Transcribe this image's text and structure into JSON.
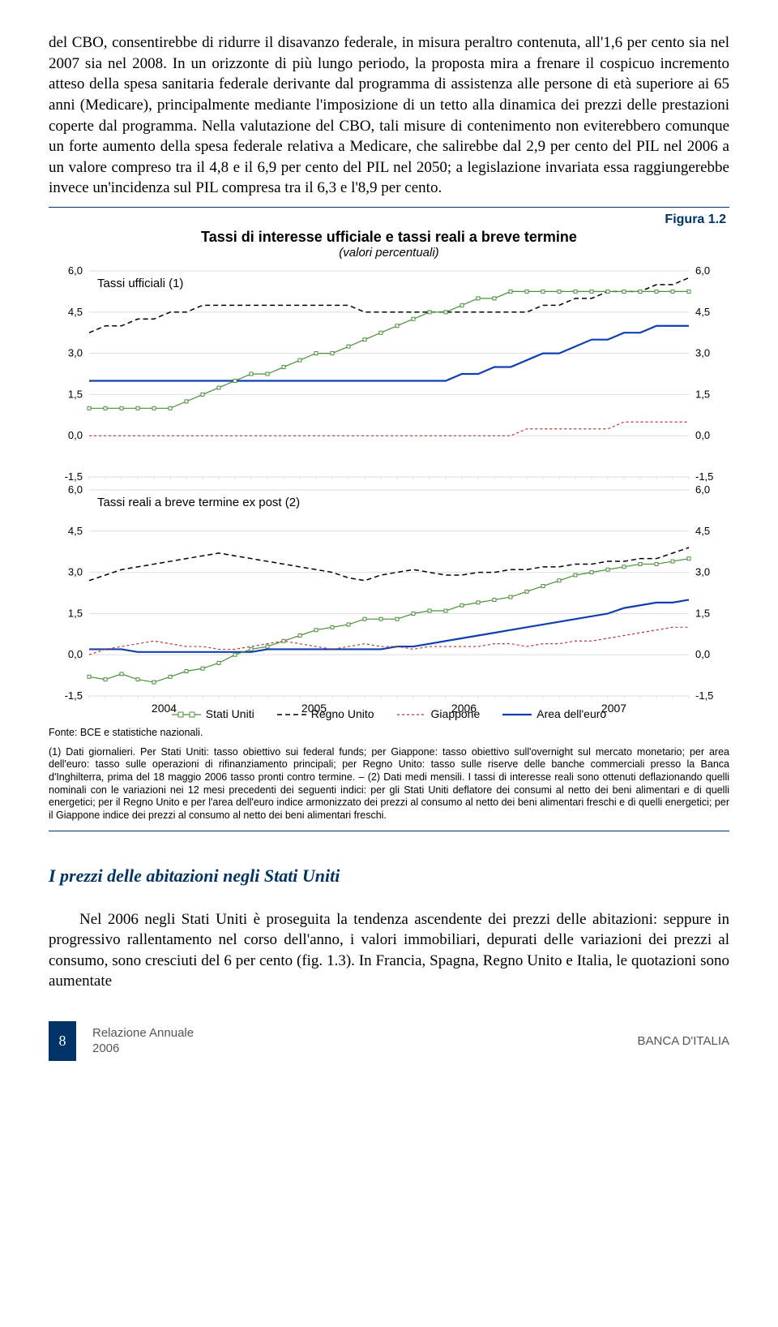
{
  "para1": "del CBO, consentirebbe di ridurre il disavanzo federale, in misura peraltro contenuta, all'1,6 per cento sia nel 2007 sia nel 2008. In un orizzonte di più lungo periodo, la proposta mira a frenare il cospicuo incremento atteso della spesa sanitaria federale derivante dal programma di assistenza alle persone di età superiore ai 65 anni (Medicare), principalmente mediante l'imposizione di un tetto alla dinamica dei prezzi delle prestazioni coperte dal programma. Nella valutazione del CBO, tali misure di contenimento non eviterebbero comunque un forte aumento della spesa federale relativa a Medicare, che salirebbe dal 2,9 per cento del PIL nel 2006 a un valore compreso tra il 4,8 e il 6,9 per cento del PIL nel 2050; a legislazione invariata essa raggiungerebbe invece un'incidenza sul PIL compresa tra il 6,3 e l'8,9 per cento.",
  "figure": {
    "label": "Figura 1.2",
    "title": "Tassi di interesse ufficiale e tassi reali a breve termine",
    "subtitle": "(valori percentuali)",
    "panel1_label": "Tassi ufficiali  (1)",
    "panel2_label": "Tassi reali a breve termine ex post (2)",
    "x_years": [
      "2004",
      "2005",
      "2006",
      "2007"
    ],
    "y_ticks": [
      "6,0",
      "4,5",
      "3,0",
      "1,5",
      "0,0",
      "-1,5"
    ],
    "ylim": [
      -1.5,
      6.0
    ],
    "colors": {
      "us": "#4a8f3a",
      "uk": "#000000",
      "jp": "#c03030",
      "euro": "#1040b0",
      "grid": "#dddddd",
      "plot_bg": "#ffffff"
    },
    "line_styles": {
      "us": {
        "dash": "none",
        "width": 1.2,
        "marker": "square"
      },
      "uk": {
        "dash": "6,4",
        "width": 1.5,
        "marker": "none"
      },
      "jp": {
        "dash": "3,3",
        "width": 1.2,
        "marker": "none"
      },
      "euro": {
        "dash": "none",
        "width": 2.2,
        "marker": "none"
      }
    },
    "panel1": {
      "us": [
        1.0,
        1.0,
        1.0,
        1.0,
        1.0,
        1.0,
        1.25,
        1.5,
        1.75,
        2.0,
        2.25,
        2.25,
        2.5,
        2.75,
        3.0,
        3.0,
        3.25,
        3.5,
        3.75,
        4.0,
        4.25,
        4.5,
        4.5,
        4.75,
        5.0,
        5.0,
        5.25,
        5.25,
        5.25,
        5.25,
        5.25,
        5.25,
        5.25,
        5.25,
        5.25,
        5.25,
        5.25,
        5.25
      ],
      "uk": [
        3.75,
        4.0,
        4.0,
        4.25,
        4.25,
        4.5,
        4.5,
        4.75,
        4.75,
        4.75,
        4.75,
        4.75,
        4.75,
        4.75,
        4.75,
        4.75,
        4.75,
        4.5,
        4.5,
        4.5,
        4.5,
        4.5,
        4.5,
        4.5,
        4.5,
        4.5,
        4.5,
        4.5,
        4.75,
        4.75,
        5.0,
        5.0,
        5.25,
        5.25,
        5.25,
        5.5,
        5.5,
        5.75
      ],
      "jp": [
        0.0,
        0.0,
        0.0,
        0.0,
        0.0,
        0.0,
        0.0,
        0.0,
        0.0,
        0.0,
        0.0,
        0.0,
        0.0,
        0.0,
        0.0,
        0.0,
        0.0,
        0.0,
        0.0,
        0.0,
        0.0,
        0.0,
        0.0,
        0.0,
        0.0,
        0.0,
        0.0,
        0.25,
        0.25,
        0.25,
        0.25,
        0.25,
        0.25,
        0.5,
        0.5,
        0.5,
        0.5,
        0.5
      ],
      "euro": [
        2.0,
        2.0,
        2.0,
        2.0,
        2.0,
        2.0,
        2.0,
        2.0,
        2.0,
        2.0,
        2.0,
        2.0,
        2.0,
        2.0,
        2.0,
        2.0,
        2.0,
        2.0,
        2.0,
        2.0,
        2.0,
        2.0,
        2.0,
        2.25,
        2.25,
        2.5,
        2.5,
        2.75,
        3.0,
        3.0,
        3.25,
        3.5,
        3.5,
        3.75,
        3.75,
        4.0,
        4.0,
        4.0
      ]
    },
    "panel2": {
      "us": [
        -0.8,
        -0.9,
        -0.7,
        -0.9,
        -1.0,
        -0.8,
        -0.6,
        -0.5,
        -0.3,
        0.0,
        0.2,
        0.3,
        0.5,
        0.7,
        0.9,
        1.0,
        1.1,
        1.3,
        1.3,
        1.3,
        1.5,
        1.6,
        1.6,
        1.8,
        1.9,
        2.0,
        2.1,
        2.3,
        2.5,
        2.7,
        2.9,
        3.0,
        3.1,
        3.2,
        3.3,
        3.3,
        3.4,
        3.5
      ],
      "uk": [
        2.7,
        2.9,
        3.1,
        3.2,
        3.3,
        3.4,
        3.5,
        3.6,
        3.7,
        3.6,
        3.5,
        3.4,
        3.3,
        3.2,
        3.1,
        3.0,
        2.8,
        2.7,
        2.9,
        3.0,
        3.1,
        3.0,
        2.9,
        2.9,
        3.0,
        3.0,
        3.1,
        3.1,
        3.2,
        3.2,
        3.3,
        3.3,
        3.4,
        3.4,
        3.5,
        3.5,
        3.7,
        3.9
      ],
      "jp": [
        0.0,
        0.2,
        0.3,
        0.4,
        0.5,
        0.4,
        0.3,
        0.3,
        0.2,
        0.2,
        0.3,
        0.4,
        0.5,
        0.4,
        0.3,
        0.2,
        0.3,
        0.4,
        0.3,
        0.3,
        0.2,
        0.3,
        0.3,
        0.3,
        0.3,
        0.4,
        0.4,
        0.3,
        0.4,
        0.4,
        0.5,
        0.5,
        0.6,
        0.7,
        0.8,
        0.9,
        1.0,
        1.0
      ],
      "euro": [
        0.2,
        0.2,
        0.2,
        0.1,
        0.1,
        0.1,
        0.1,
        0.1,
        0.1,
        0.1,
        0.1,
        0.2,
        0.2,
        0.2,
        0.2,
        0.2,
        0.2,
        0.2,
        0.2,
        0.3,
        0.3,
        0.4,
        0.5,
        0.6,
        0.7,
        0.8,
        0.9,
        1.0,
        1.1,
        1.2,
        1.3,
        1.4,
        1.5,
        1.7,
        1.8,
        1.9,
        1.9,
        2.0
      ]
    },
    "legend": {
      "us": "Stati Uniti",
      "uk": "Regno Unito",
      "jp": "Giappone",
      "euro": "Area dell'euro"
    },
    "source": "Fonte: BCE e statistiche nazionali.",
    "note": "(1) Dati giornalieri. Per Stati Uniti: tasso obiettivo sui federal funds; per Giappone: tasso obiettivo sull'overnight sul mercato monetario; per area dell'euro: tasso sulle operazioni di rifinanziamento principali; per Regno Unito: tasso sulle riserve delle banche commerciali presso la Banca d'Inghilterra, prima del 18 maggio 2006 tasso pronti contro termine. – (2) Dati medi mensili. I tassi di interesse reali sono ottenuti deflazionando quelli nominali con le variazioni nei 12 mesi precedenti dei seguenti indici: per gli Stati Uniti deflatore dei consumi al netto dei beni alimentari e di quelli energetici; per il Regno Unito e per l'area dell'euro indice armonizzato dei prezzi al consumo al netto dei beni alimentari freschi e di quelli energetici; per il Giappone indice dei prezzi al consumo al netto dei beni alimentari freschi."
  },
  "section_head": "I prezzi delle abitazioni negli Stati Uniti",
  "para2": "Nel 2006 negli Stati Uniti è proseguita la tendenza ascendente dei prezzi delle abitazioni: seppure in progressivo rallentamento nel corso dell'anno, i valori immobiliari, depurati delle variazioni dei prezzi al consumo, sono cresciuti del 6 per cento (fig. 1.3). In Francia, Spagna, Regno Unito e Italia, le quotazioni sono aumentate",
  "footer": {
    "page": "8",
    "left1": "Relazione Annuale",
    "left2": "2006",
    "right": "BANCA D'ITALIA"
  }
}
